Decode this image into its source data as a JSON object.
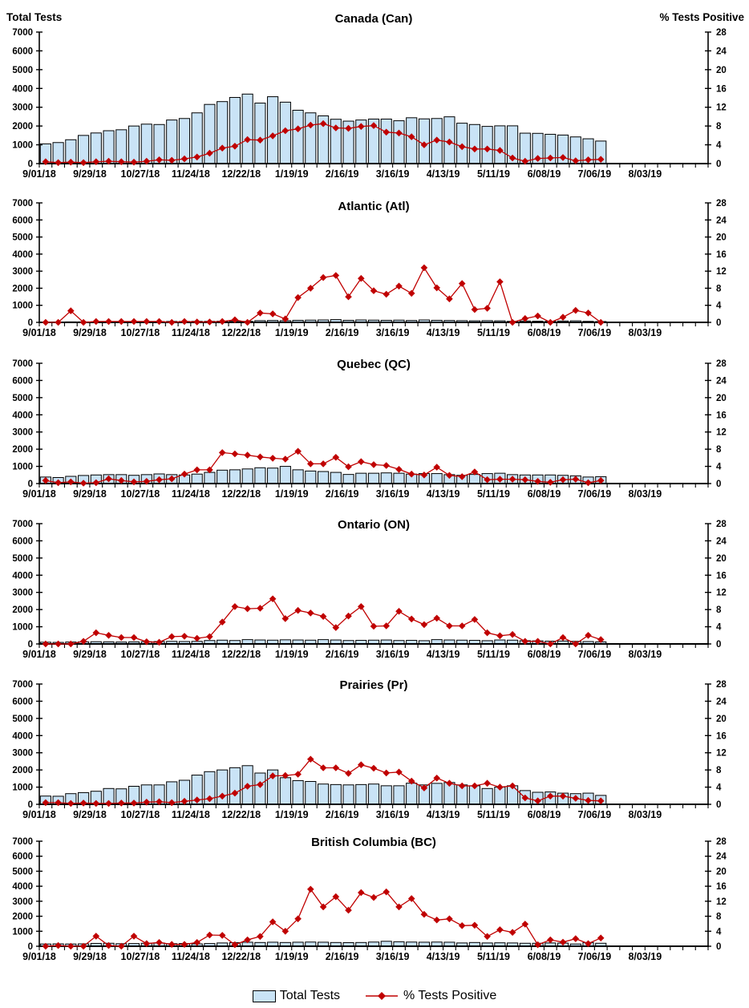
{
  "header": {
    "left_label": "Total Tests",
    "right_label": "% Tests Positive"
  },
  "colors": {
    "bar_fill": "#C9E3F6",
    "bar_stroke": "#000000",
    "line_color": "#C00000",
    "text_color": "#000000",
    "background": "#FFFFFF"
  },
  "charts_common": {
    "x_axis": {
      "tick_labels": [
        "9/01/18",
        "9/29/18",
        "10/27/18",
        "11/24/18",
        "12/22/18",
        "1/19/19",
        "2/16/19",
        "3/16/19",
        "4/13/19",
        "5/11/19",
        "6/08/19",
        "7/06/19",
        "8/03/19"
      ],
      "label_every_n_weeks": 4,
      "weeks_total": 53,
      "data_weeks": 45,
      "grid": false
    },
    "left_axis": {
      "title": "Total Tests",
      "min": 0,
      "max": 7000,
      "ticks": [
        7000,
        6000,
        5000,
        4000,
        3000,
        2000,
        1000,
        0
      ]
    },
    "right_axis": {
      "title": "% Tests Positive",
      "min": 0,
      "max": 28,
      "ticks": [
        28,
        24,
        20,
        16,
        12,
        8,
        4,
        0
      ]
    },
    "legend_position": "bottom-center"
  },
  "chart_data": [
    {
      "type": "combo-bar-line",
      "title": "Canada (Can)",
      "series": [
        {
          "name": "Total Tests",
          "type": "bar",
          "axis": "left",
          "values": [
            1050,
            1120,
            1270,
            1500,
            1630,
            1750,
            1800,
            2000,
            2100,
            2080,
            2320,
            2400,
            2700,
            3150,
            3300,
            3520,
            3700,
            3220,
            3560,
            3270,
            2840,
            2700,
            2540,
            2360,
            2260,
            2320,
            2370,
            2370,
            2280,
            2440,
            2380,
            2400,
            2490,
            2150,
            2080,
            1980,
            2010,
            2010,
            1620,
            1610,
            1560,
            1520,
            1420,
            1320,
            1200
          ]
        },
        {
          "name": "% Tests Positive",
          "type": "line",
          "axis": "right",
          "values": [
            0.4,
            0.2,
            0.3,
            0.2,
            0.4,
            0.5,
            0.4,
            0.3,
            0.5,
            0.8,
            0.7,
            1.0,
            1.4,
            2.2,
            3.3,
            3.7,
            5.1,
            5.0,
            5.9,
            7.0,
            7.4,
            8.2,
            8.5,
            7.6,
            7.5,
            7.9,
            8.1,
            6.7,
            6.5,
            5.7,
            4.0,
            5.0,
            4.6,
            3.6,
            3.1,
            3.1,
            2.8,
            1.2,
            0.5,
            1.1,
            1.2,
            1.3,
            0.6,
            0.8,
            0.9
          ]
        }
      ]
    },
    {
      "type": "combo-bar-line",
      "title": "Atlantic (Atl)",
      "series": [
        {
          "name": "Total Tests",
          "type": "bar",
          "axis": "left",
          "values": [
            20,
            25,
            30,
            30,
            35,
            40,
            40,
            45,
            50,
            50,
            55,
            55,
            60,
            60,
            70,
            80,
            60,
            100,
            110,
            100,
            120,
            130,
            140,
            160,
            120,
            140,
            130,
            120,
            130,
            110,
            140,
            120,
            110,
            100,
            90,
            100,
            90,
            60,
            80,
            70,
            60,
            80,
            90,
            60,
            50
          ]
        },
        {
          "name": "% Tests Positive",
          "type": "line",
          "axis": "right",
          "values": [
            0,
            0,
            2.7,
            0,
            0.2,
            0.2,
            0.2,
            0.2,
            0.2,
            0.2,
            0,
            0.2,
            0.1,
            0.1,
            0.2,
            0.6,
            0,
            2.2,
            2.0,
            0.8,
            5.8,
            8.0,
            10.5,
            11.0,
            6.0,
            10.3,
            7.4,
            6.6,
            8.5,
            6.8,
            12.8,
            8.1,
            5.5,
            9.1,
            3.0,
            3.3,
            9.5,
            0,
            0.9,
            1.5,
            0,
            1.2,
            2.8,
            2.2,
            0
          ]
        }
      ]
    },
    {
      "type": "combo-bar-line",
      "title": "Quebec (QC)",
      "series": [
        {
          "name": "Total Tests",
          "type": "bar",
          "axis": "left",
          "values": [
            380,
            350,
            420,
            470,
            500,
            520,
            520,
            480,
            520,
            560,
            520,
            500,
            550,
            650,
            780,
            800,
            850,
            920,
            900,
            1000,
            800,
            730,
            700,
            650,
            530,
            600,
            600,
            620,
            600,
            550,
            580,
            580,
            520,
            480,
            530,
            580,
            600,
            520,
            500,
            500,
            500,
            480,
            450,
            380,
            400
          ]
        },
        {
          "name": "% Tests Positive",
          "type": "line",
          "axis": "right",
          "values": [
            0.7,
            0.2,
            0.4,
            0.1,
            0.2,
            1.1,
            0.7,
            0.4,
            0.5,
            0.9,
            1.1,
            2.2,
            3.2,
            3.2,
            7.2,
            6.9,
            6.6,
            6.2,
            5.9,
            5.7,
            7.5,
            4.6,
            4.6,
            6.1,
            3.9,
            5.1,
            4.4,
            4.2,
            3.3,
            2.2,
            2.0,
            3.8,
            1.9,
            1.6,
            2.7,
            0.9,
            1.0,
            1.0,
            0.9,
            0.5,
            0.3,
            0.9,
            1.0,
            0.2,
            0.7
          ]
        }
      ]
    },
    {
      "type": "combo-bar-line",
      "title": "Ontario (ON)",
      "series": [
        {
          "name": "Total Tests",
          "type": "bar",
          "axis": "left",
          "values": [
            100,
            90,
            110,
            120,
            130,
            120,
            110,
            120,
            130,
            140,
            150,
            140,
            150,
            200,
            220,
            200,
            250,
            230,
            220,
            240,
            230,
            220,
            250,
            230,
            200,
            210,
            220,
            230,
            200,
            210,
            190,
            250,
            230,
            220,
            210,
            190,
            230,
            220,
            190,
            180,
            160,
            170,
            150,
            140,
            120
          ]
        },
        {
          "name": "% Tests Positive",
          "type": "line",
          "axis": "right",
          "values": [
            0,
            0,
            0,
            0.6,
            2.6,
            2.0,
            1.5,
            1.5,
            0.5,
            0.4,
            1.7,
            1.8,
            1.3,
            1.7,
            5.1,
            8.7,
            8.2,
            8.3,
            10.5,
            5.9,
            7.8,
            7.2,
            6.4,
            3.8,
            6.5,
            8.7,
            4.1,
            4.2,
            7.6,
            5.8,
            4.5,
            6.0,
            4.2,
            4.2,
            5.7,
            2.6,
            1.9,
            2.2,
            0.6,
            0.6,
            0,
            1.5,
            0,
            2.0,
            1.0
          ]
        }
      ]
    },
    {
      "type": "combo-bar-line",
      "title": "Prairies (Pr)",
      "series": [
        {
          "name": "Total Tests",
          "type": "bar",
          "axis": "left",
          "values": [
            480,
            470,
            620,
            680,
            760,
            920,
            900,
            1050,
            1130,
            1130,
            1310,
            1400,
            1700,
            1900,
            2000,
            2130,
            2250,
            1820,
            2000,
            1550,
            1380,
            1330,
            1180,
            1150,
            1130,
            1150,
            1180,
            1080,
            1080,
            1230,
            1130,
            1220,
            1270,
            1130,
            1080,
            920,
            1000,
            1080,
            800,
            700,
            720,
            650,
            620,
            650,
            520
          ]
        },
        {
          "name": "% Tests Positive",
          "type": "line",
          "axis": "right",
          "values": [
            0.4,
            0.4,
            0.2,
            0.3,
            0.2,
            0.2,
            0.3,
            0.3,
            0.5,
            0.6,
            0.4,
            0.7,
            1.0,
            1.3,
            1.9,
            2.6,
            4.2,
            4.6,
            6.6,
            6.7,
            7.0,
            10.5,
            8.5,
            8.5,
            7.2,
            9.2,
            8.4,
            7.3,
            7.5,
            5.4,
            3.8,
            6.1,
            4.9,
            4.3,
            4.3,
            4.9,
            4.0,
            4.3,
            1.5,
            0.8,
            1.9,
            1.9,
            1.4,
            0.9,
            0.8
          ]
        }
      ]
    },
    {
      "type": "combo-bar-line",
      "title": "British Columbia (BC)",
      "series": [
        {
          "name": "Total Tests",
          "type": "bar",
          "axis": "left",
          "values": [
            150,
            160,
            150,
            160,
            190,
            200,
            170,
            180,
            200,
            220,
            170,
            180,
            160,
            180,
            220,
            240,
            270,
            250,
            270,
            250,
            270,
            280,
            270,
            250,
            240,
            250,
            280,
            330,
            300,
            280,
            270,
            280,
            270,
            220,
            250,
            220,
            230,
            220,
            200,
            200,
            220,
            210,
            150,
            250,
            200
          ]
        },
        {
          "name": "% Tests Positive",
          "type": "line",
          "axis": "right",
          "values": [
            0,
            0.2,
            0,
            0,
            2.7,
            0.2,
            0,
            2.7,
            0.7,
            1.0,
            0.5,
            0.5,
            1.0,
            3.0,
            2.9,
            0.4,
            1.7,
            2.6,
            6.5,
            4.0,
            7.3,
            15.2,
            10.5,
            13.2,
            9.6,
            14.3,
            13.0,
            14.5,
            10.5,
            12.7,
            8.5,
            7.0,
            7.3,
            5.5,
            5.6,
            2.6,
            4.4,
            3.7,
            5.9,
            0.4,
            1.7,
            1.1,
            2.0,
            0.7,
            2.2
          ]
        }
      ]
    }
  ],
  "legend": {
    "items": [
      {
        "label": "Total Tests",
        "swatch": "bar"
      },
      {
        "label": "% Tests Positive",
        "swatch": "line-diamond"
      }
    ]
  }
}
